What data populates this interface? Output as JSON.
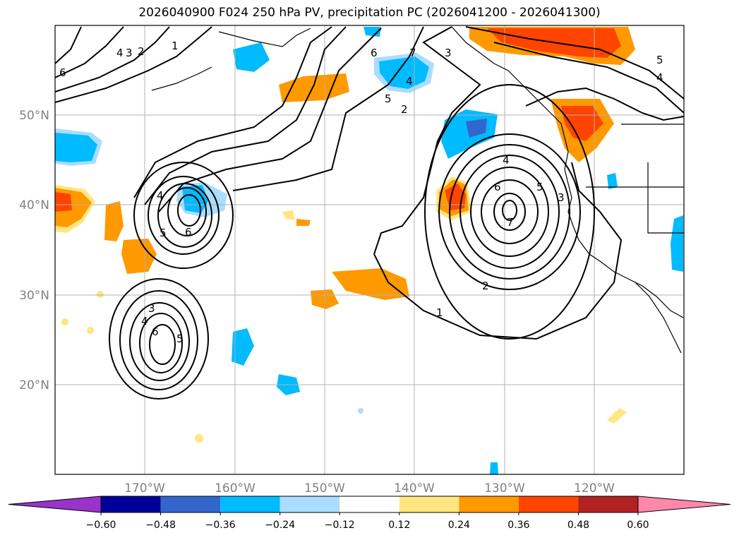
{
  "title": "2026040900 F024 250 hPa PV, precipitation PC (2026041200 - 2026041300)",
  "lat_labels": [
    "50°N",
    "40°N",
    "30°N",
    "20°N"
  ],
  "lon_labels": [
    "170°W",
    "160°W",
    "150°W",
    "140°W",
    "130°W",
    "120°W"
  ],
  "colorbar": {
    "ticks": [
      "−0.60",
      "−0.48",
      "−0.36",
      "−0.24",
      "−0.12",
      "0.12",
      "0.24",
      "0.36",
      "0.48",
      "0.60"
    ],
    "colors": [
      "#9933cc",
      "#000099",
      "#3366cc",
      "#00bbff",
      "#aaddff",
      "#ffffff",
      "#ffe680",
      "#ff9900",
      "#ff4400",
      "#b22222",
      "#ff88aa"
    ]
  },
  "contour_labels": [
    "1",
    "2",
    "3",
    "4",
    "5",
    "6",
    "7"
  ]
}
